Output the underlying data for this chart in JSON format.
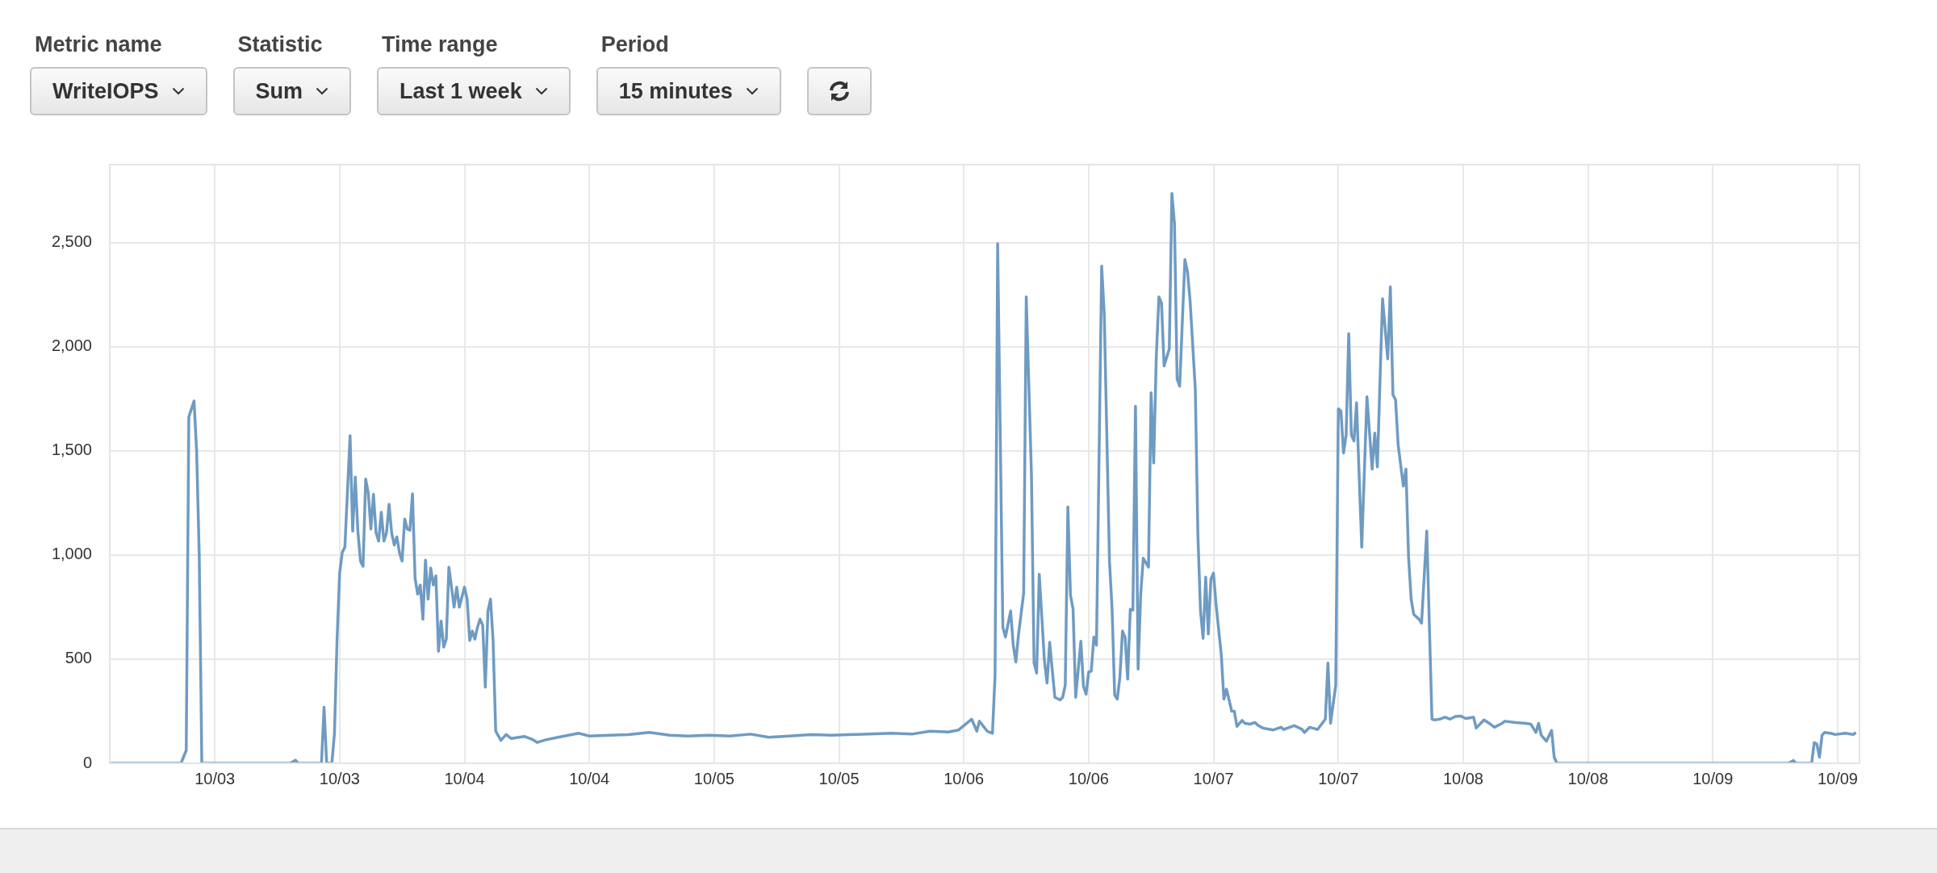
{
  "chart_data": {
    "type": "line",
    "annotations": [
      "Metric name",
      "WriteIOPS",
      "Statistic",
      "Sum",
      "Time range",
      "Last 1 week",
      "Period",
      "15 minutes"
    ],
    "x": [
      "--10-02T14:00",
      "--10-02T20:45",
      "--10-02T21:15",
      "--10-02T21:30",
      "--10-02T22:00",
      "--10-02T22:15",
      "--10-02T22:30",
      "--10-02T22:45",
      "--10-03T07:15",
      "--10-03T07:45",
      "--10-03T08:00",
      "--10-03T10:15",
      "--10-03T10:30",
      "--10-03T10:45",
      "--10-03T11:15",
      "--10-03T11:30",
      "--10-03T11:45",
      "--10-03T12:00",
      "--10-03T12:15",
      "--10-03T12:30",
      "--10-03T13:00",
      "--10-03T13:15",
      "--10-03T13:30",
      "--10-03T13:45",
      "--10-03T14:00",
      "--10-03T14:15",
      "--10-03T14:30",
      "--10-03T14:45",
      "--10-03T15:00",
      "--10-03T15:15",
      "--10-03T15:30",
      "--10-03T15:45",
      "--10-03T16:00",
      "--10-03T16:15",
      "--10-03T16:30",
      "--10-03T16:45",
      "--10-03T17:00",
      "--10-03T17:15",
      "--10-03T17:30",
      "--10-03T17:45",
      "--10-03T18:00",
      "--10-03T18:15",
      "--10-03T18:30",
      "--10-03T18:45",
      "--10-03T19:00",
      "--10-03T19:15",
      "--10-03T19:30",
      "--10-03T19:45",
      "--10-03T20:00",
      "--10-03T20:15",
      "--10-03T20:30",
      "--10-03T20:45",
      "--10-03T21:00",
      "--10-03T21:15",
      "--10-03T21:30",
      "--10-03T21:45",
      "--10-03T22:00",
      "--10-03T22:15",
      "--10-03T22:30",
      "--10-03T23:00",
      "--10-03T23:15",
      "--10-03T23:30",
      "--10-04T00:00",
      "--10-04T00:15",
      "--10-04T00:30",
      "--10-04T00:45",
      "--10-04T01:00",
      "--10-04T01:15",
      "--10-04T01:30",
      "--10-04T01:45",
      "--10-04T02:00",
      "--10-04T02:15",
      "--10-04T02:30",
      "--10-04T02:45",
      "--10-04T03:00",
      "--10-04T03:30",
      "--10-04T04:00",
      "--10-04T04:30",
      "--10-04T05:45",
      "--10-04T06:30",
      "--10-04T07:00",
      "--10-04T07:45",
      "--10-04T09:00",
      "--10-04T11:00",
      "--10-04T12:00",
      "--10-04T14:00",
      "--10-04T15:45",
      "--10-04T17:45",
      "--10-04T19:45",
      "--10-04T21:30",
      "--10-04T23:30",
      "--10-05T01:30",
      "--10-05T03:30",
      "--10-05T05:15",
      "--10-05T07:15",
      "--10-05T09:15",
      "--10-05T11:15",
      "--10-05T13:00",
      "--10-05T15:00",
      "--10-05T17:00",
      "--10-05T19:00",
      "--10-05T20:45",
      "--10-05T22:30",
      "--10-05T23:30",
      "--10-06T00:45",
      "--10-06T01:15",
      "--10-06T01:30",
      "--10-06T02:15",
      "--10-06T02:45",
      "--10-06T03:00",
      "--10-06T03:15",
      "--10-06T03:45",
      "--10-06T04:00",
      "--10-06T04:30",
      "--10-06T04:45",
      "--10-06T05:00",
      "--10-06T05:15",
      "--10-06T05:45",
      "--10-06T06:00",
      "--10-06T06:30",
      "--10-06T06:45",
      "--10-06T07:00",
      "--10-06T07:15",
      "--10-06T07:45",
      "--10-06T08:00",
      "--10-06T08:15",
      "--10-06T08:45",
      "--10-06T09:15",
      "--10-06T09:30",
      "--10-06T09:45",
      "--10-06T10:00",
      "--10-06T10:15",
      "--10-06T10:30",
      "--10-06T10:45",
      "--10-06T11:15",
      "--10-06T11:30",
      "--10-06T11:45",
      "--10-06T12:00",
      "--10-06T12:15",
      "--10-06T12:30",
      "--10-06T12:45",
      "--10-06T13:15",
      "--10-06T13:30",
      "--10-06T14:00",
      "--10-06T14:15",
      "--10-06T14:30",
      "--10-06T14:45",
      "--10-06T15:00",
      "--10-06T15:15",
      "--10-06T15:30",
      "--10-06T15:45",
      "--10-06T16:00",
      "--10-06T16:15",
      "--10-06T16:30",
      "--10-06T16:45",
      "--10-06T17:00",
      "--10-06T17:15",
      "--10-06T17:45",
      "--10-06T18:00",
      "--10-06T18:15",
      "--10-06T18:30",
      "--10-06T18:45",
      "--10-06T19:00",
      "--10-06T19:15",
      "--10-06T19:45",
      "--10-06T20:00",
      "--10-06T20:15",
      "--10-06T20:30",
      "--10-06T20:45",
      "--10-06T21:15",
      "--10-06T21:30",
      "--10-06T21:45",
      "--10-06T22:15",
      "--10-06T22:30",
      "--10-06T22:45",
      "--10-06T23:00",
      "--10-06T23:15",
      "--10-06T23:30",
      "--10-06T23:45",
      "--10-07T00:00",
      "--10-07T00:15",
      "--10-07T00:45",
      "--10-07T01:00",
      "--10-07T01:15",
      "--10-07T01:45",
      "--10-07T02:00",
      "--10-07T02:15",
      "--10-07T02:45",
      "--10-07T03:00",
      "--10-07T03:30",
      "--10-07T04:00",
      "--10-07T04:15",
      "--10-07T04:45",
      "--10-07T05:45",
      "--10-07T06:30",
      "--10-07T06:45",
      "--10-07T07:45",
      "--10-07T08:30",
      "--10-07T08:45",
      "--10-07T09:15",
      "--10-07T10:00",
      "--10-07T10:45",
      "--10-07T11:00",
      "--10-07T11:15",
      "--10-07T11:45",
      "--10-07T12:00",
      "--10-07T12:15",
      "--10-07T12:30",
      "--10-07T12:45",
      "--10-07T13:00",
      "--10-07T13:15",
      "--10-07T13:30",
      "--10-07T13:45",
      "--10-07T14:15",
      "--10-07T14:45",
      "--10-07T15:15",
      "--10-07T15:30",
      "--10-07T15:45",
      "--10-07T16:15",
      "--10-07T16:45",
      "--10-07T17:00",
      "--10-07T17:15",
      "--10-07T17:30",
      "--10-07T17:45",
      "--10-07T18:15",
      "--10-07T18:30",
      "--10-07T18:45",
      "--10-07T19:00",
      "--10-07T19:15",
      "--10-07T19:45",
      "--10-07T20:00",
      "--10-07T20:30",
      "--10-07T21:00",
      "--10-07T21:15",
      "--10-07T21:45",
      "--10-07T22:15",
      "--10-07T22:45",
      "--10-07T23:15",
      "--10-07T23:45",
      "--10-08T00:15",
      "--10-08T01:00",
      "--10-08T01:15",
      "--10-08T02:00",
      "--10-08T02:30",
      "--10-08T03:00",
      "--10-08T03:45",
      "--10-08T04:00",
      "--10-08T05:00",
      "--10-08T06:00",
      "--10-08T06:30",
      "--10-08T07:00",
      "--10-08T07:15",
      "--10-08T07:30",
      "--10-08T08:00",
      "--10-08T08:30",
      "--10-08T08:45",
      "--10-08T09:00",
      "--10-09T07:15",
      "--10-09T07:45",
      "--10-09T08:00",
      "--10-09T09:30",
      "--10-09T09:45",
      "--10-09T10:00",
      "--10-09T10:15",
      "--10-09T10:30",
      "--10-09T10:45",
      "--10-09T11:30",
      "--10-09T11:45",
      "--10-09T12:45",
      "--10-09T13:30",
      "--10-09T13:45"
    ],
    "series": [
      {
        "color": "#6f9bc2",
        "values": [
          0,
          0,
          62,
          1663,
          1740,
          1500,
          1000,
          0,
          0,
          15,
          0,
          0,
          269,
          0,
          0,
          144,
          596,
          913,
          1013,
          1038,
          1573,
          1115,
          1375,
          1115,
          971,
          946,
          1365,
          1298,
          1125,
          1292,
          1106,
          1067,
          1206,
          1067,
          1106,
          1244,
          1106,
          1048,
          1087,
          1010,
          971,
          1173,
          1125,
          1119,
          1294,
          888,
          812,
          856,
          692,
          975,
          788,
          938,
          856,
          900,
          538,
          683,
          558,
          596,
          942,
          750,
          846,
          750,
          846,
          788,
          590,
          635,
          596,
          654,
          692,
          663,
          365,
          731,
          788,
          586,
          154,
          110,
          138,
          119,
          129,
          115,
          100,
          112,
          125,
          144,
          131,
          135,
          138,
          148,
          135,
          131,
          135,
          131,
          140,
          125,
          131,
          138,
          135,
          138,
          140,
          144,
          140,
          154,
          150,
          160,
          212,
          154,
          202,
          154,
          144,
          420,
          2495,
          654,
          606,
          731,
          567,
          486,
          615,
          817,
          2240,
          1385,
          481,
          433,
          908,
          490,
          385,
          581,
          317,
          304,
          317,
          375,
          1231,
          808,
          740,
          317,
          586,
          369,
          331,
          438,
          442,
          606,
          567,
          2388,
          2154,
          971,
          740,
          327,
          308,
          413,
          635,
          606,
          404,
          740,
          735,
          1715,
          452,
          808,
          985,
          942,
          1779,
          1442,
          1952,
          2240,
          2211,
          1908,
          1990,
          2736,
          2592,
          1846,
          1811,
          2419,
          2361,
          2221,
          1798,
          1096,
          731,
          600,
          894,
          621,
          885,
          913,
          760,
          519,
          308,
          356,
          250,
          250,
          177,
          206,
          192,
          188,
          196,
          183,
          169,
          160,
          173,
          162,
          181,
          163,
          148,
          173,
          162,
          212,
          481,
          192,
          375,
          1702,
          1692,
          1490,
          1577,
          2063,
          1577,
          1548,
          1731,
          1038,
          1760,
          1413,
          1586,
          1423,
          2231,
          1942,
          2288,
          1769,
          1746,
          1529,
          1331,
          1413,
          990,
          788,
          715,
          692,
          673,
          1115,
          212,
          208,
          212,
          221,
          212,
          225,
          227,
          215,
          221,
          169,
          208,
          192,
          173,
          192,
          202,
          196,
          192,
          188,
          148,
          192,
          135,
          106,
          158,
          29,
          0,
          0,
          13,
          0,
          0,
          100,
          92,
          29,
          135,
          148,
          142,
          138,
          144,
          138,
          148
        ]
      }
    ],
    "xlim": [
      "--10-02T13:54",
      "--10-09T14:06"
    ],
    "xticks": [
      {
        "value": "--10-03T00:00",
        "label": "10/03"
      },
      {
        "value": "--10-03T12:00",
        "label": "10/03"
      },
      {
        "value": "--10-04T00:00",
        "label": "10/04"
      },
      {
        "value": "--10-04T12:00",
        "label": "10/04"
      },
      {
        "value": "--10-05T00:00",
        "label": "10/05"
      },
      {
        "value": "--10-05T12:00",
        "label": "10/05"
      },
      {
        "value": "--10-06T00:00",
        "label": "10/06"
      },
      {
        "value": "--10-06T12:00",
        "label": "10/06"
      },
      {
        "value": "--10-07T00:00",
        "label": "10/07"
      },
      {
        "value": "--10-07T12:00",
        "label": "10/07"
      },
      {
        "value": "--10-08T00:00",
        "label": "10/08"
      },
      {
        "value": "--10-08T12:00",
        "label": "10/08"
      },
      {
        "value": "--10-09T00:00",
        "label": "10/09"
      },
      {
        "value": "--10-09T12:00",
        "label": "10/09"
      }
    ],
    "ylim": [
      0,
      2875
    ],
    "yticks": [
      0,
      500,
      {
        "value": 1000,
        "label": "1,000"
      },
      {
        "value": 1500,
        "label": "1,500"
      },
      {
        "value": 2000,
        "label": "2,000"
      },
      {
        "value": 2500,
        "label": "2,500"
      }
    ],
    "grid": true,
    "legend": false,
    "marker": "none",
    "line_style": "solid"
  }
}
